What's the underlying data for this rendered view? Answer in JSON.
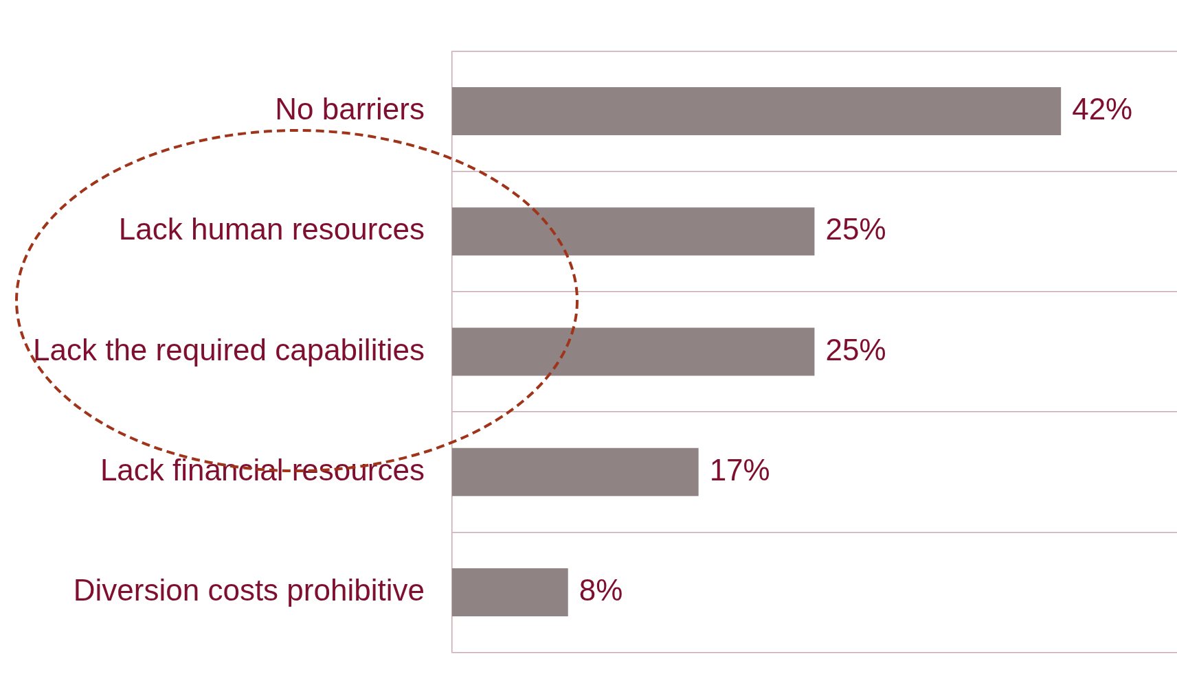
{
  "chart_data": {
    "type": "bar",
    "orientation": "horizontal",
    "categories": [
      "No barriers",
      "Lack human resources",
      "Lack the required capabilities",
      "Lack financial resources",
      "Diversion costs prohibitive"
    ],
    "values": [
      42,
      25,
      25,
      17,
      8
    ],
    "value_labels": [
      "42%",
      "25%",
      "25%",
      "17%",
      "8%"
    ],
    "color": "#8f8483",
    "xlim": [
      0,
      50
    ],
    "grid": "y"
  }
}
